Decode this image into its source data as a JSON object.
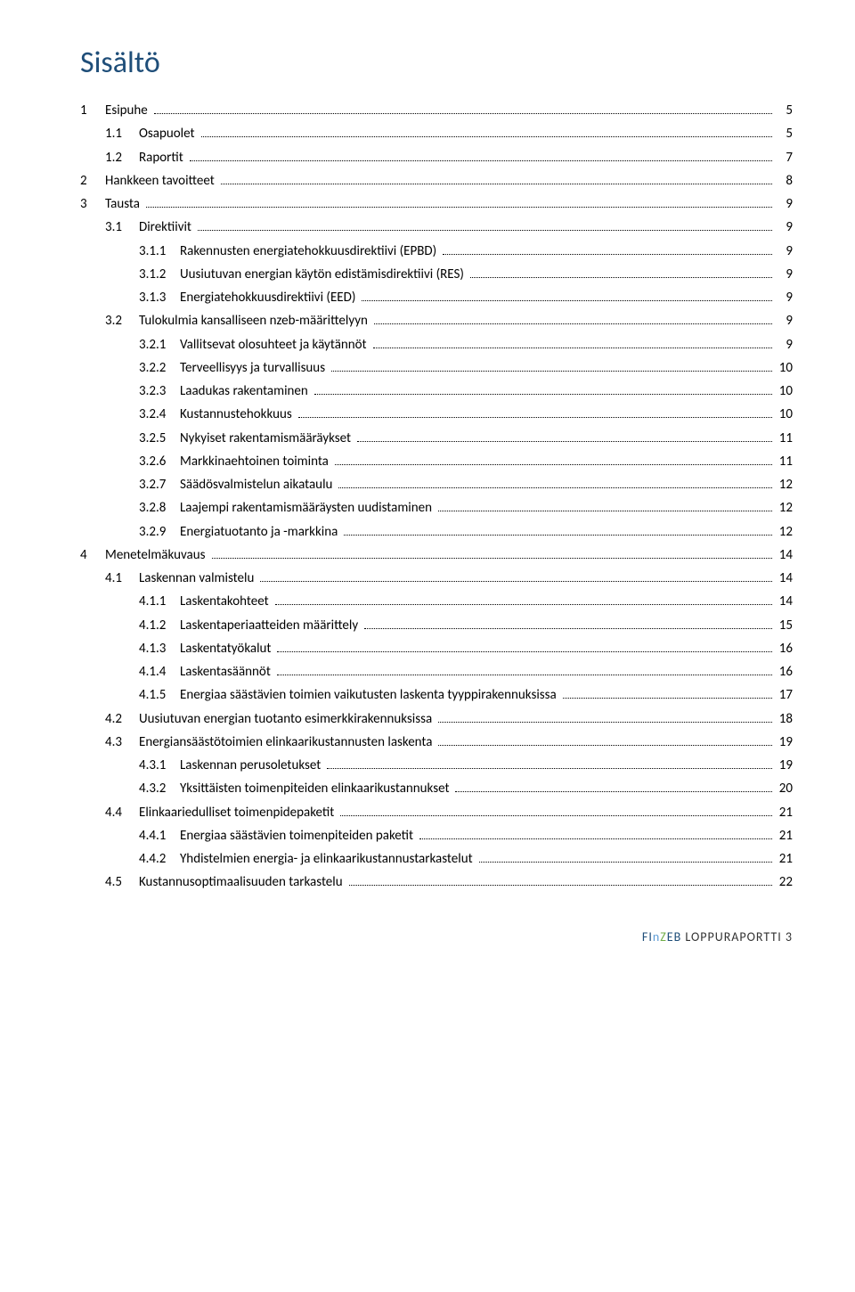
{
  "title": "Sisältö",
  "toc": [
    {
      "lvl": 1,
      "num": "1",
      "label": "Esipuhe",
      "page": "5"
    },
    {
      "lvl": 2,
      "num": "1.1",
      "label": "Osapuolet",
      "page": "5"
    },
    {
      "lvl": 2,
      "num": "1.2",
      "label": "Raportit",
      "page": "7"
    },
    {
      "lvl": 1,
      "num": "2",
      "label": "Hankkeen tavoitteet",
      "page": "8"
    },
    {
      "lvl": 1,
      "num": "3",
      "label": "Tausta",
      "page": "9"
    },
    {
      "lvl": 2,
      "num": "3.1",
      "label": "Direktiivit",
      "page": "9"
    },
    {
      "lvl": 3,
      "num": "3.1.1",
      "label": "Rakennusten energiatehokkuusdirektiivi (EPBD)",
      "page": "9"
    },
    {
      "lvl": 3,
      "num": "3.1.2",
      "label": "Uusiutuvan energian käytön edistämisdirektiivi (RES)",
      "page": "9"
    },
    {
      "lvl": 3,
      "num": "3.1.3",
      "label": "Energiatehokkuusdirektiivi (EED)",
      "page": "9"
    },
    {
      "lvl": 2,
      "num": "3.2",
      "label": "Tulokulmia kansalliseen nzeb-määrittelyyn",
      "page": "9"
    },
    {
      "lvl": 3,
      "num": "3.2.1",
      "label": "Vallitsevat olosuhteet ja käytännöt",
      "page": "9"
    },
    {
      "lvl": 3,
      "num": "3.2.2",
      "label": "Terveellisyys ja turvallisuus",
      "page": "10"
    },
    {
      "lvl": 3,
      "num": "3.2.3",
      "label": "Laadukas rakentaminen",
      "page": "10"
    },
    {
      "lvl": 3,
      "num": "3.2.4",
      "label": "Kustannustehokkuus",
      "page": "10"
    },
    {
      "lvl": 3,
      "num": "3.2.5",
      "label": "Nykyiset rakentamismääräykset",
      "page": "11"
    },
    {
      "lvl": 3,
      "num": "3.2.6",
      "label": "Markkinaehtoinen toiminta",
      "page": "11"
    },
    {
      "lvl": 3,
      "num": "3.2.7",
      "label": "Säädösvalmistelun aikataulu",
      "page": "12"
    },
    {
      "lvl": 3,
      "num": "3.2.8",
      "label": "Laajempi rakentamismääräysten uudistaminen",
      "page": "12"
    },
    {
      "lvl": 3,
      "num": "3.2.9",
      "label": "Energiatuotanto ja -markkina",
      "page": "12"
    },
    {
      "lvl": 1,
      "num": "4",
      "label": "Menetelmäkuvaus",
      "page": "14"
    },
    {
      "lvl": 2,
      "num": "4.1",
      "label": "Laskennan valmistelu",
      "page": "14"
    },
    {
      "lvl": 3,
      "num": "4.1.1",
      "label": "Laskentakohteet",
      "page": "14"
    },
    {
      "lvl": 3,
      "num": "4.1.2",
      "label": "Laskentaperiaatteiden määrittely",
      "page": "15"
    },
    {
      "lvl": 3,
      "num": "4.1.3",
      "label": "Laskentatyökalut",
      "page": "16"
    },
    {
      "lvl": 3,
      "num": "4.1.4",
      "label": "Laskentasäännöt",
      "page": "16"
    },
    {
      "lvl": 3,
      "num": "4.1.5",
      "label": "Energiaa säästävien toimien vaikutusten laskenta tyyppirakennuksissa",
      "page": "17"
    },
    {
      "lvl": 2,
      "num": "4.2",
      "label": "Uusiutuvan energian tuotanto esimerkkirakennuksissa",
      "page": "18"
    },
    {
      "lvl": 2,
      "num": "4.3",
      "label": "Energiansäästötoimien elinkaarikustannusten laskenta",
      "page": "19"
    },
    {
      "lvl": 3,
      "num": "4.3.1",
      "label": "Laskennan perusoletukset",
      "page": "19"
    },
    {
      "lvl": 3,
      "num": "4.3.2",
      "label": "Yksittäisten toimenpiteiden elinkaarikustannukset",
      "page": "20"
    },
    {
      "lvl": 2,
      "num": "4.4",
      "label": "Elinkaariedulliset toimenpidepaketit",
      "page": "21"
    },
    {
      "lvl": 3,
      "num": "4.4.1",
      "label": "Energiaa säästävien toimenpiteiden paketit",
      "page": "21"
    },
    {
      "lvl": 3,
      "num": "4.4.2",
      "label": "Yhdistelmien energia- ja elinkaarikustannustarkastelut",
      "page": "21"
    },
    {
      "lvl": 2,
      "num": "4.5",
      "label": "Kustannusoptimaalisuuden tarkastelu",
      "page": "22"
    }
  ],
  "footer": {
    "brand_letters": [
      "F",
      "I",
      "n",
      "Z",
      "E",
      "B"
    ],
    "brand_classes": [
      "f",
      "i",
      "n",
      "z",
      "e",
      "b"
    ],
    "rest": " LOPPURAPORTTI 3"
  },
  "colors": {
    "title": "#1f4e79",
    "text": "#000000",
    "background": "#ffffff"
  },
  "typography": {
    "title_fontsize": 34,
    "body_fontsize": 15,
    "footer_fontsize": 14
  }
}
